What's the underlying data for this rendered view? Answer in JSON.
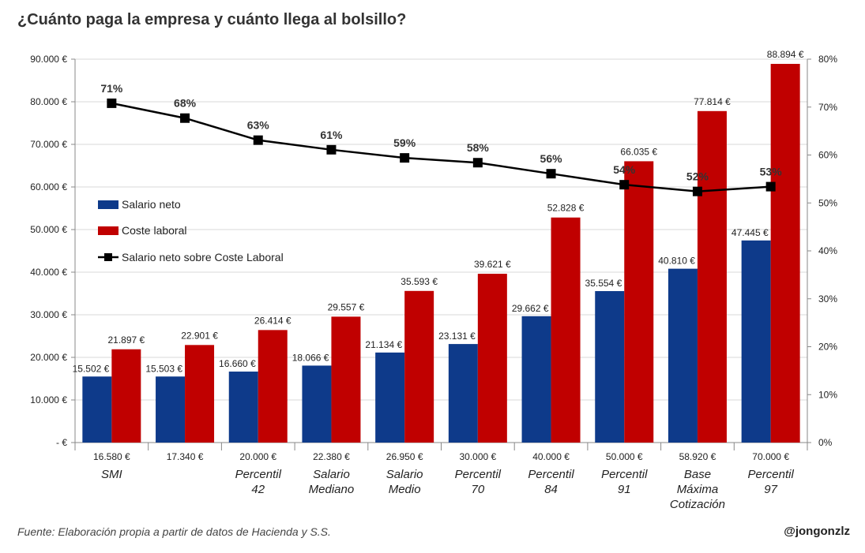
{
  "header": {
    "title": "¿Cuánto paga la empresa y cuánto llega al bolsillo?"
  },
  "footer": {
    "source": "Fuente: Elaboración propia a partir de datos de Hacienda y S.S.",
    "credit": "@jongonzlz"
  },
  "chart_data": {
    "type": "bar",
    "categories": [
      {
        "gross": "16.580 €",
        "label": [
          "SMI"
        ]
      },
      {
        "gross": "17.340 €",
        "label": []
      },
      {
        "gross": "20.000 €",
        "label": [
          "Percentil",
          "42"
        ]
      },
      {
        "gross": "22.380 €",
        "label": [
          "Salario",
          "Mediano"
        ]
      },
      {
        "gross": "26.950 €",
        "label": [
          "Salario",
          "Medio"
        ]
      },
      {
        "gross": "30.000 €",
        "label": [
          "Percentil",
          "70"
        ]
      },
      {
        "gross": "40.000 €",
        "label": [
          "Percentil",
          "84"
        ]
      },
      {
        "gross": "50.000 €",
        "label": [
          "Percentil",
          "91"
        ]
      },
      {
        "gross": "58.920 €",
        "label": [
          "Base",
          "Máxima",
          "Cotización"
        ]
      },
      {
        "gross": "70.000 €",
        "label": [
          "Percentil",
          "97"
        ]
      }
    ],
    "series": [
      {
        "name": "Salario neto",
        "color": "#0e3a8a",
        "axis": "left",
        "values": [
          15502,
          15503,
          16660,
          18066,
          21134,
          23131,
          29662,
          35554,
          40810,
          47445
        ],
        "labels": [
          "15.502 €",
          "15.503 €",
          "16.660 €",
          "18.066 €",
          "21.134 €",
          "23.131 €",
          "29.662 €",
          "35.554 €",
          "40.810 €",
          "47.445 €"
        ]
      },
      {
        "name": "Coste laboral",
        "color": "#c00000",
        "axis": "left",
        "values": [
          21897,
          22901,
          26414,
          29557,
          35593,
          39621,
          52828,
          66035,
          77814,
          88894
        ],
        "labels": [
          "21.897 €",
          "22.901 €",
          "26.414 €",
          "29.557 €",
          "35.593 €",
          "39.621 €",
          "52.828 €",
          "66.035 €",
          "77.814 €",
          "88.894 €"
        ]
      },
      {
        "name": "Salario neto sobre Coste Laboral",
        "type": "line",
        "color": "#000000",
        "axis": "right",
        "values": [
          70.8,
          67.7,
          63.1,
          61.1,
          59.4,
          58.4,
          56.1,
          53.8,
          52.4,
          53.4
        ],
        "labels": [
          "71%",
          "68%",
          "63%",
          "61%",
          "59%",
          "58%",
          "56%",
          "54%",
          "52%",
          "53%"
        ]
      }
    ],
    "y_left": {
      "range": [
        0,
        90000
      ],
      "ticks": [
        0,
        10000,
        20000,
        30000,
        40000,
        50000,
        60000,
        70000,
        80000,
        90000
      ],
      "tick_labels": [
        "-   €",
        "10.000 €",
        "20.000 €",
        "30.000 €",
        "40.000 €",
        "50.000 €",
        "60.000 €",
        "70.000 €",
        "80.000 €",
        "90.000 €"
      ]
    },
    "y_right": {
      "range": [
        0,
        80
      ],
      "ticks": [
        0,
        10,
        20,
        30,
        40,
        50,
        60,
        70,
        80
      ],
      "tick_labels": [
        "0%",
        "10%",
        "20%",
        "30%",
        "40%",
        "50%",
        "60%",
        "70%",
        "80%"
      ]
    },
    "grid": true,
    "legend_position": "left, inside plot"
  }
}
